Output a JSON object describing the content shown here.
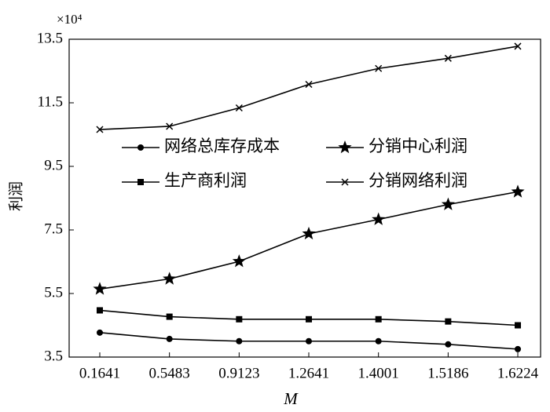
{
  "chart_data": {
    "type": "line",
    "y_multiplier": "×10⁴",
    "x_label": "M",
    "y_label": "利润",
    "categories": [
      "0.1641",
      "0.5483",
      "0.9123",
      "1.2641",
      "1.4001",
      "1.5186",
      "1.6224"
    ],
    "series": [
      {
        "name": "网络总库存成本",
        "color": "#000000",
        "marker": "circle",
        "values": [
          4.27,
          4.07,
          4.0,
          4.0,
          4.0,
          3.9,
          3.75
        ]
      },
      {
        "name": "分销中心利润",
        "color": "#000000",
        "marker": "star",
        "values": [
          5.64,
          5.96,
          6.51,
          7.38,
          7.83,
          8.3,
          8.7
        ]
      },
      {
        "name": "生产商利润",
        "color": "#000000",
        "marker": "square",
        "values": [
          4.97,
          4.77,
          4.69,
          4.69,
          4.69,
          4.62,
          4.5
        ]
      },
      {
        "name": "分销网络利润",
        "color": "#000000",
        "marker": "cross",
        "values": [
          10.66,
          10.76,
          11.34,
          12.08,
          12.58,
          12.9,
          13.28
        ]
      }
    ],
    "ylim": [
      3.5,
      13.5
    ],
    "yticks": [
      3.5,
      5.5,
      7.5,
      9.5,
      11.5,
      13.5
    ],
    "grid": false
  }
}
